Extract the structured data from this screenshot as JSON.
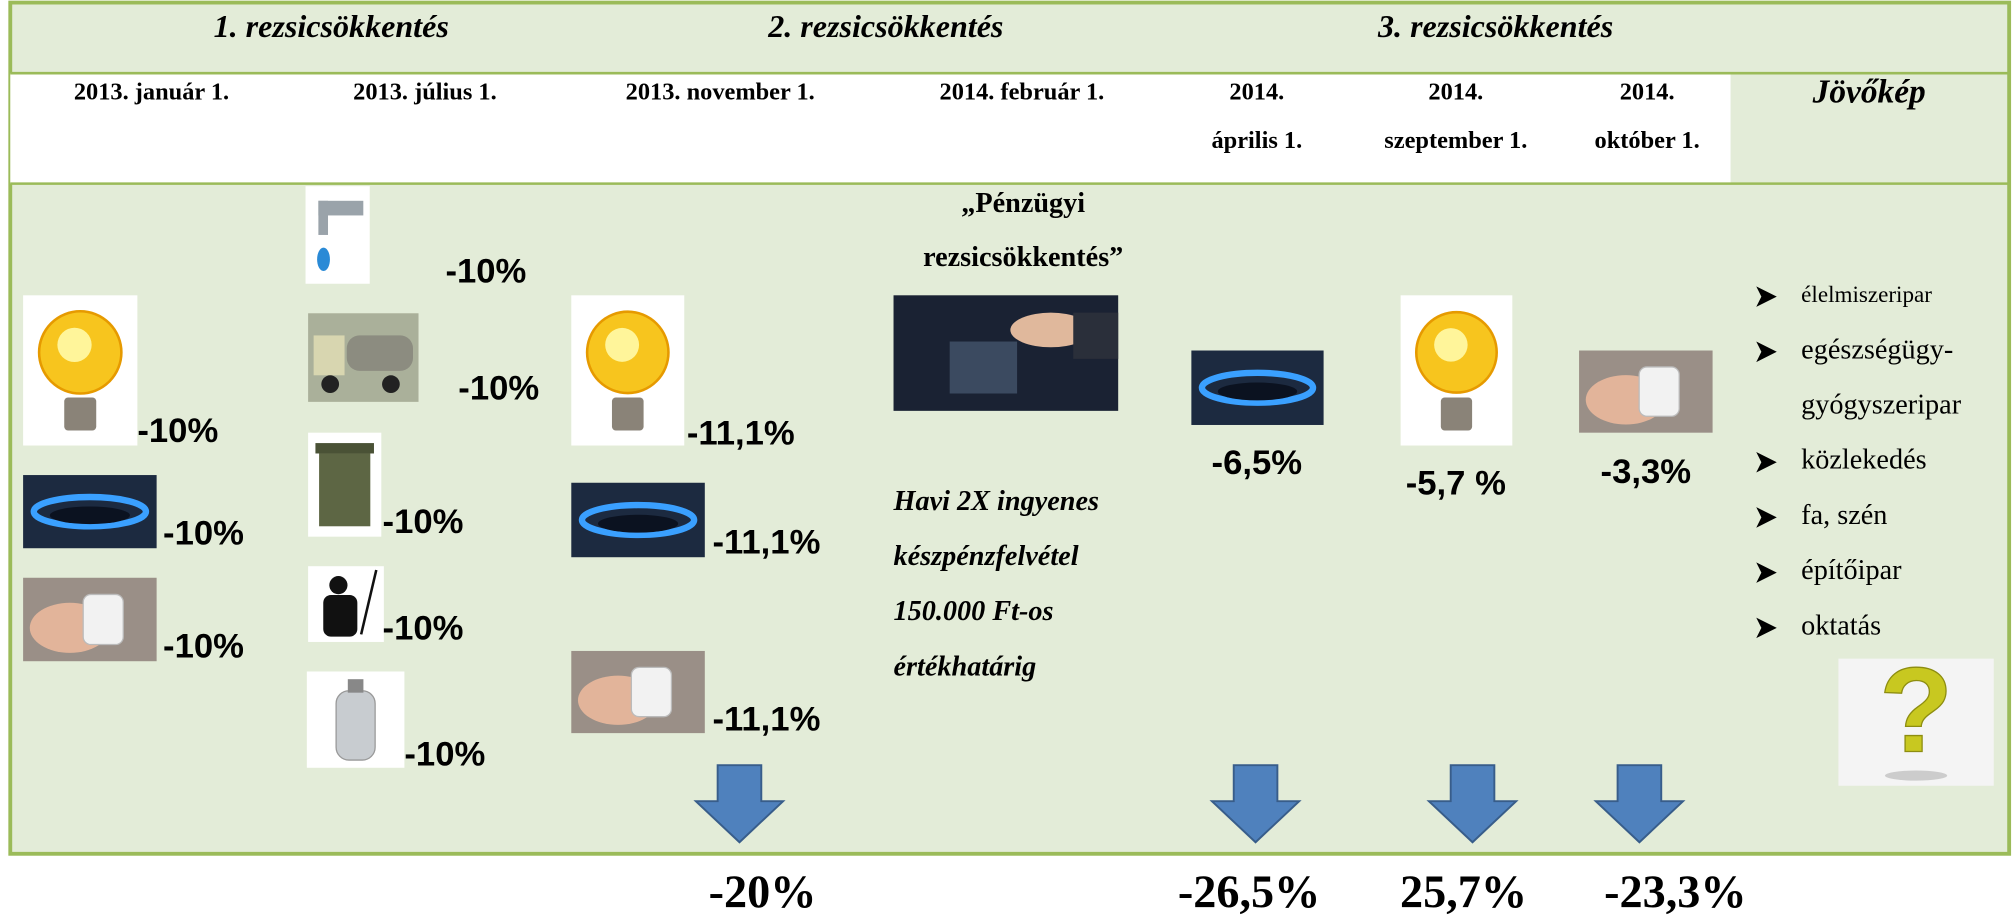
{
  "phases": [
    "1. rezsicsökkentés",
    "2. rezsicsökkentés",
    "3. rezsicsökkentés"
  ],
  "dates": [
    [
      "2013. január 1."
    ],
    [
      "2013. július 1."
    ],
    [
      "2013. november 1."
    ],
    [
      "2014. február 1."
    ],
    [
      "2014.",
      "április 1."
    ],
    [
      "2014.",
      "szeptember 1."
    ],
    [
      "2014.",
      "október 1."
    ]
  ],
  "future_title": "Jövőkép",
  "columns": [
    [
      "-10%",
      "-10%",
      "-10%"
    ],
    [
      "-10%",
      "-10%",
      "-10%",
      "-10%",
      "-10%"
    ],
    [
      "-11,1%",
      "-11,1%",
      "-11,1%"
    ],
    [],
    [
      "-6,5%"
    ],
    [
      "-5,7 %"
    ],
    [
      "-3,3%"
    ]
  ],
  "financial": {
    "title": [
      "„Pénzügyi",
      "rezsicsökkentés”"
    ],
    "text": [
      "Havi 2X ingyenes",
      "készpénzfelvétel",
      "150.000 Ft-os",
      "értékhatárig"
    ]
  },
  "totals": [
    "-20%",
    "-26,5%",
    "25,7%",
    "-23,3%"
  ],
  "future": [
    [
      "élelmiszeripar"
    ],
    [
      "egészségügy-",
      "gyógyszeripar"
    ],
    [
      "közlekedés"
    ],
    [
      "fa, szén"
    ],
    [
      "építőipar"
    ],
    [
      "oktatás"
    ]
  ]
}
